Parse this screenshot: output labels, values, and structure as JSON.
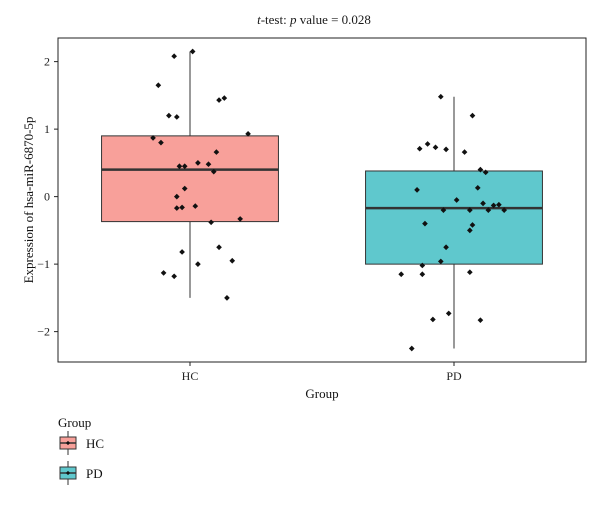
{
  "chart_data": {
    "type": "box",
    "title_italic": "t",
    "title_rest": "-test: ",
    "title_p": "p",
    "title_tail": " value = 0.028",
    "xlabel": "Group",
    "ylabel": "Expression of hsa-miR-6870-5p",
    "ylim": [
      -2.45,
      2.35
    ],
    "yticks": [
      2,
      1,
      0,
      -1,
      -2
    ],
    "ytick_labels": [
      "2",
      "1",
      "0",
      "−1",
      "−2"
    ],
    "categories": [
      "HC",
      "PD"
    ],
    "boxes": [
      {
        "name": "HC",
        "color": "#F8A09A",
        "q1": -0.37,
        "median": 0.4,
        "q3": 0.9,
        "whisker_low": -1.5,
        "whisker_high": 2.15,
        "points": [
          [
            -0.06,
            2.08
          ],
          [
            0.01,
            2.15
          ],
          [
            -0.12,
            1.65
          ],
          [
            -0.08,
            1.2
          ],
          [
            -0.05,
            1.18
          ],
          [
            0.13,
            1.46
          ],
          [
            0.11,
            1.43
          ],
          [
            0.22,
            0.93
          ],
          [
            -0.14,
            0.87
          ],
          [
            -0.11,
            0.8
          ],
          [
            0.1,
            0.66
          ],
          [
            0.03,
            0.5
          ],
          [
            0.07,
            0.48
          ],
          [
            -0.04,
            0.45
          ],
          [
            -0.02,
            0.45
          ],
          [
            0.09,
            0.37
          ],
          [
            -0.05,
            0.0
          ],
          [
            -0.02,
            0.12
          ],
          [
            -0.05,
            -0.17
          ],
          [
            -0.03,
            -0.16
          ],
          [
            0.02,
            -0.14
          ],
          [
            0.19,
            -0.33
          ],
          [
            0.08,
            -0.38
          ],
          [
            -0.03,
            -0.82
          ],
          [
            0.11,
            -0.75
          ],
          [
            0.16,
            -0.95
          ],
          [
            0.03,
            -1.0
          ],
          [
            -0.1,
            -1.13
          ],
          [
            -0.06,
            -1.18
          ],
          [
            0.14,
            -1.5
          ]
        ]
      },
      {
        "name": "PD",
        "color": "#5FC8CD",
        "q1": -1.0,
        "median": -0.17,
        "q3": 0.38,
        "whisker_low": -2.25,
        "whisker_high": 1.48,
        "points": [
          [
            -0.05,
            1.48
          ],
          [
            0.07,
            1.2
          ],
          [
            0.04,
            0.66
          ],
          [
            -0.13,
            0.71
          ],
          [
            -0.07,
            0.73
          ],
          [
            -0.1,
            0.78
          ],
          [
            -0.03,
            0.7
          ],
          [
            0.12,
            0.36
          ],
          [
            0.1,
            0.4
          ],
          [
            0.09,
            0.13
          ],
          [
            -0.14,
            0.1
          ],
          [
            0.01,
            -0.05
          ],
          [
            0.15,
            -0.13
          ],
          [
            0.13,
            -0.2
          ],
          [
            0.06,
            -0.2
          ],
          [
            0.19,
            -0.2
          ],
          [
            -0.04,
            -0.2
          ],
          [
            0.17,
            -0.12
          ],
          [
            0.11,
            -0.1
          ],
          [
            -0.11,
            -0.4
          ],
          [
            0.07,
            -0.42
          ],
          [
            0.06,
            -0.5
          ],
          [
            -0.03,
            -0.75
          ],
          [
            -0.05,
            -0.96
          ],
          [
            -0.12,
            -1.02
          ],
          [
            -0.2,
            -1.15
          ],
          [
            -0.12,
            -1.15
          ],
          [
            0.06,
            -1.12
          ],
          [
            -0.02,
            -1.73
          ],
          [
            -0.08,
            -1.82
          ],
          [
            0.1,
            -1.83
          ],
          [
            -0.16,
            -2.25
          ]
        ]
      }
    ],
    "legend": {
      "title": "Group",
      "items": [
        {
          "label": "HC",
          "color": "#F8A09A"
        },
        {
          "label": "PD",
          "color": "#5FC8CD"
        }
      ],
      "placement": "bottom-left"
    },
    "grid": false
  }
}
